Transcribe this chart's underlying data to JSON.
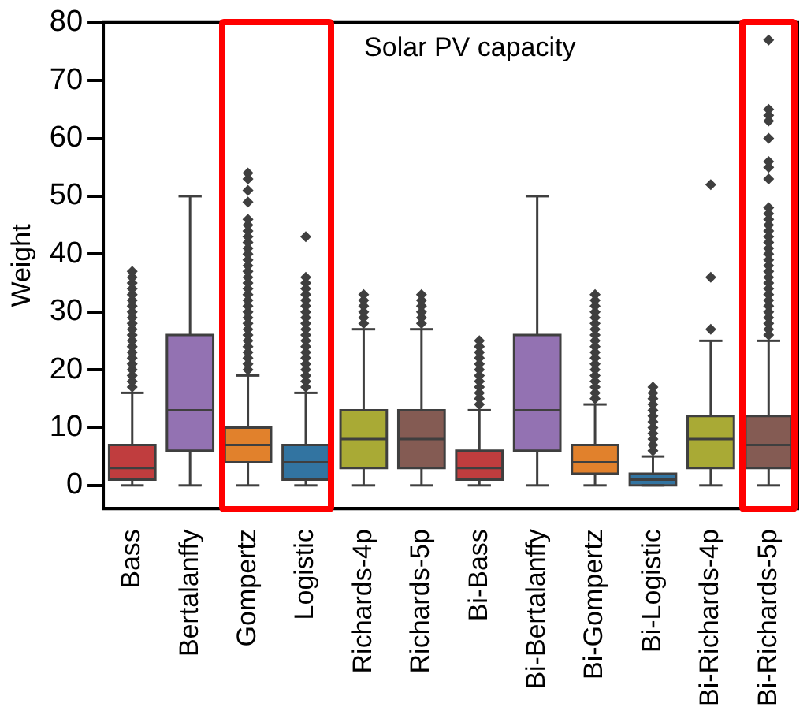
{
  "chart_data": {
    "type": "box",
    "title": "Solar PV capacity",
    "ylabel": "Weight",
    "categories": [
      "Bass",
      "Bertalanffy",
      "Gompertz",
      "Logistic",
      "Richards-4p",
      "Richards-5p",
      "Bi-Bass",
      "Bi-Bertalanffy",
      "Bi-Gompertz",
      "Bi-Logistic",
      "Bi-Richards-4p",
      "Bi-Richards-5p"
    ],
    "colors": [
      "#c03d3e",
      "#9372b2",
      "#e1812c",
      "#3274a1",
      "#a9aa35",
      "#845b53",
      "#c03d3e",
      "#9372b2",
      "#e1812c",
      "#3274a1",
      "#a9aa35",
      "#845b53"
    ],
    "boxes": [
      {
        "low": 0,
        "q1": 1,
        "median": 3,
        "q3": 7,
        "high": 16,
        "outliers": [
          17,
          18,
          19,
          20,
          21,
          22,
          23,
          24,
          25,
          26,
          27,
          28,
          29,
          30,
          31,
          32,
          33,
          34,
          35,
          36,
          37
        ]
      },
      {
        "low": 0,
        "q1": 6,
        "median": 13,
        "q3": 26,
        "high": 50
      },
      {
        "low": 0,
        "q1": 4,
        "median": 7,
        "q3": 10,
        "high": 19,
        "outliers": [
          20,
          21,
          22,
          23,
          24,
          25,
          26,
          27,
          28,
          29,
          30,
          31,
          32,
          33,
          34,
          35,
          36,
          37,
          38,
          39,
          40,
          41,
          42,
          43,
          44,
          45,
          46,
          49,
          51,
          53,
          54
        ]
      },
      {
        "low": 0,
        "q1": 1,
        "median": 4,
        "q3": 7,
        "high": 16,
        "outliers": [
          17,
          18,
          19,
          20,
          21,
          22,
          23,
          24,
          25,
          26,
          27,
          28,
          29,
          30,
          31,
          32,
          33,
          34,
          35,
          36,
          43
        ]
      },
      {
        "low": 0,
        "q1": 3,
        "median": 8,
        "q3": 13,
        "high": 27,
        "outliers": [
          28,
          29,
          30,
          31,
          32,
          33
        ]
      },
      {
        "low": 0,
        "q1": 3,
        "median": 8,
        "q3": 13,
        "high": 27,
        "outliers": [
          28,
          29,
          30,
          31,
          32,
          33
        ]
      },
      {
        "low": 0,
        "q1": 1,
        "median": 3,
        "q3": 6,
        "high": 13,
        "outliers": [
          14,
          15,
          16,
          17,
          18,
          19,
          20,
          21,
          22,
          23,
          24,
          25
        ]
      },
      {
        "low": 0,
        "q1": 6,
        "median": 13,
        "q3": 26,
        "high": 50
      },
      {
        "low": 0,
        "q1": 2,
        "median": 4,
        "q3": 7,
        "high": 14,
        "outliers": [
          15,
          16,
          17,
          18,
          19,
          20,
          21,
          22,
          23,
          24,
          25,
          26,
          27,
          28,
          29,
          30,
          31,
          32,
          33
        ]
      },
      {
        "low": 0,
        "q1": 0,
        "median": 1,
        "q3": 2,
        "high": 5,
        "outliers": [
          6,
          7,
          8,
          9,
          10,
          11,
          12,
          13,
          14,
          15,
          16,
          17
        ]
      },
      {
        "low": 0,
        "q1": 3,
        "median": 8,
        "q3": 12,
        "high": 25,
        "outliers": [
          27,
          36,
          52
        ]
      },
      {
        "low": 0,
        "q1": 3,
        "median": 7,
        "q3": 12,
        "high": 25,
        "outliers": [
          26,
          27,
          28,
          29,
          30,
          31,
          32,
          33,
          34,
          35,
          36,
          37,
          38,
          39,
          40,
          41,
          42,
          43,
          44,
          45,
          46,
          47,
          48,
          53,
          55,
          56,
          60,
          63,
          64,
          65,
          77
        ]
      }
    ],
    "ylim": [
      -4,
      80
    ],
    "yticks": [
      0,
      10,
      20,
      30,
      40,
      50,
      60,
      70,
      80
    ],
    "grid": false,
    "legend": false,
    "marker": "diamond"
  }
}
